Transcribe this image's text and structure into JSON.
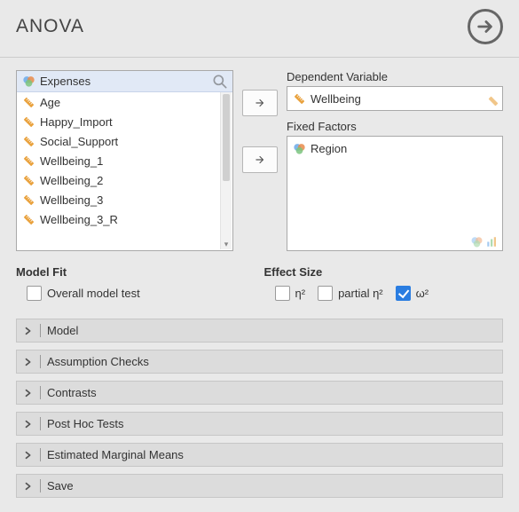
{
  "title": "ANOVA",
  "source_list": {
    "search_selected": "Expenses",
    "items": [
      {
        "label": "Age",
        "icon": "ruler"
      },
      {
        "label": "Happy_Import",
        "icon": "ruler"
      },
      {
        "label": "Social_Support",
        "icon": "ruler"
      },
      {
        "label": "Wellbeing_1",
        "icon": "ruler"
      },
      {
        "label": "Wellbeing_2",
        "icon": "ruler"
      },
      {
        "label": "Wellbeing_3",
        "icon": "ruler"
      },
      {
        "label": "Wellbeing_3_R",
        "icon": "ruler"
      }
    ]
  },
  "targets": {
    "dependent": {
      "title": "Dependent Variable",
      "item": {
        "label": "Wellbeing",
        "icon": "ruler"
      }
    },
    "fixed": {
      "title": "Fixed Factors",
      "item": {
        "label": "Region",
        "icon": "venn"
      }
    }
  },
  "model_fit": {
    "title": "Model Fit",
    "overall": {
      "label": "Overall model test",
      "checked": false
    }
  },
  "effect_size": {
    "title": "Effect Size",
    "eta": {
      "label": "η²",
      "checked": false
    },
    "partial": {
      "label": "partial η²",
      "checked": false
    },
    "omega": {
      "label": "ω²",
      "checked": true
    }
  },
  "accordions": [
    {
      "label": "Model"
    },
    {
      "label": "Assumption Checks"
    },
    {
      "label": "Contrasts"
    },
    {
      "label": "Post Hoc Tests"
    },
    {
      "label": "Estimated Marginal Means"
    },
    {
      "label": "Save"
    }
  ],
  "colors": {
    "ruler": "#e9a13c",
    "venn_a": "#6aa9e9",
    "venn_b": "#e98b4a",
    "venn_c": "#7bc47f"
  }
}
